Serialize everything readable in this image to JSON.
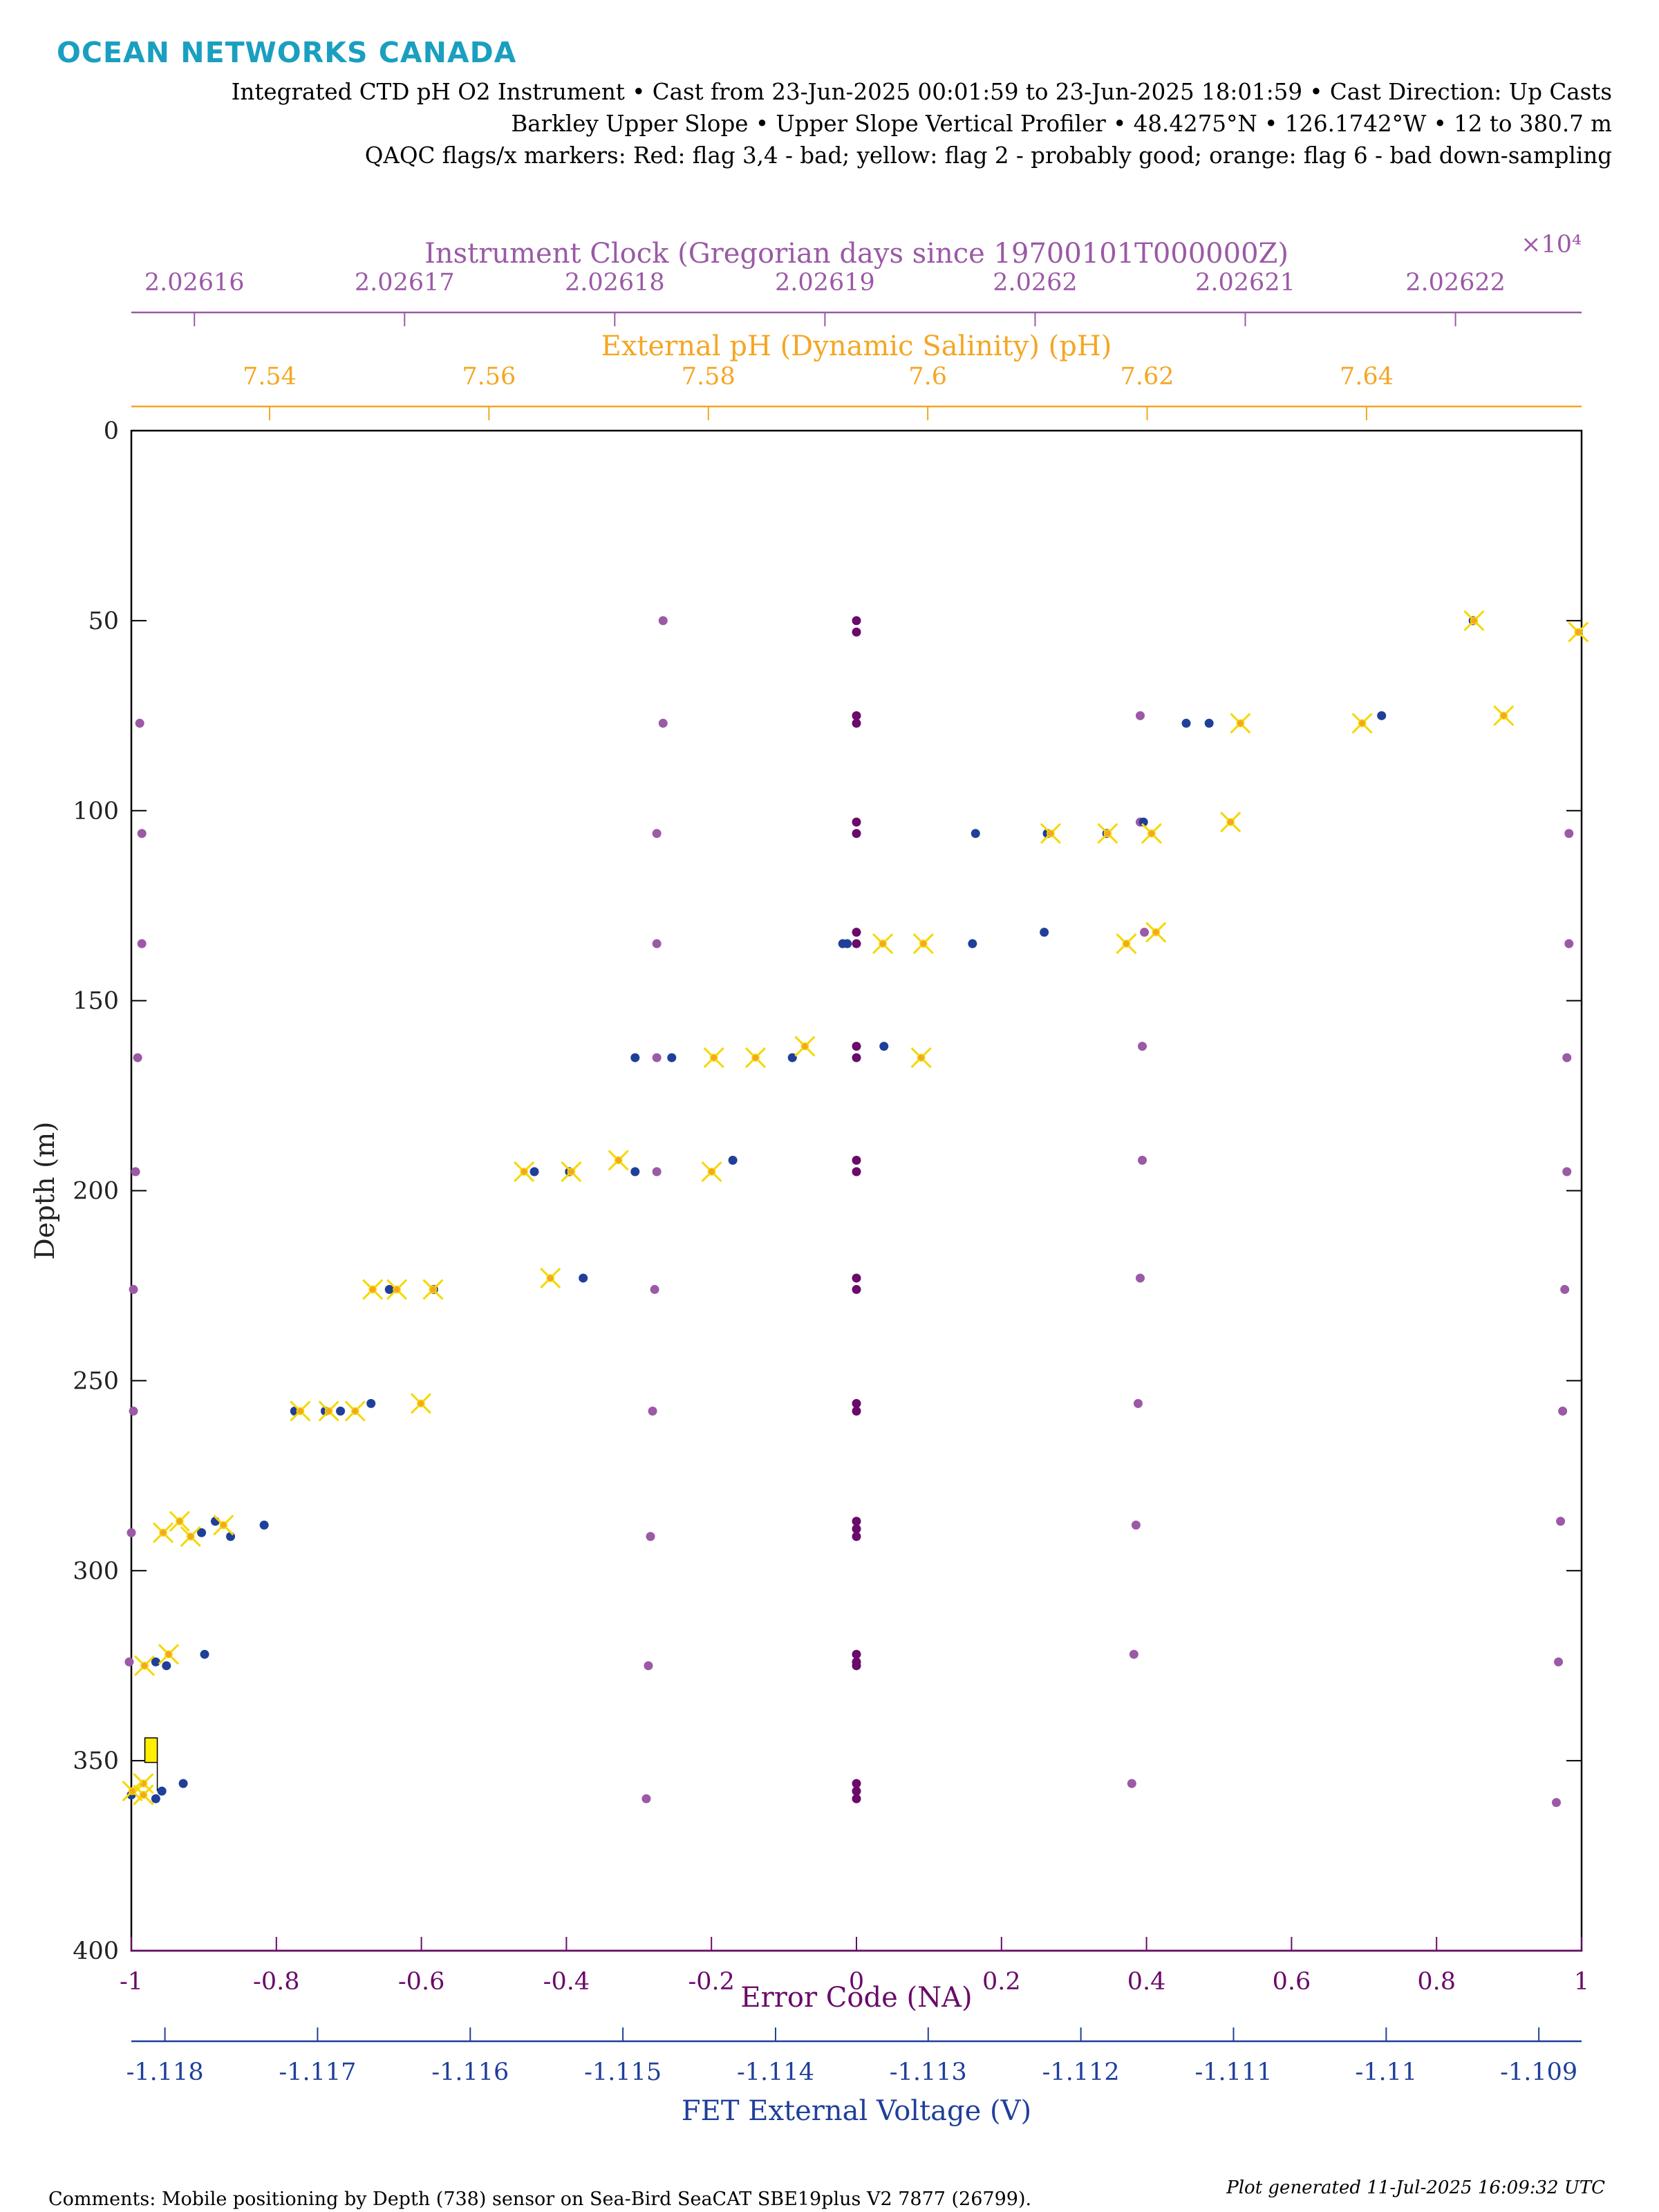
{
  "brand": {
    "logo_text": "OCEAN NETWORKS CANADA",
    "color": "#1a9fc0"
  },
  "header": {
    "line1": "Integrated CTD pH O2 Instrument • Cast from 23-Jun-2025 00:01:59 to 23-Jun-2025 18:01:59 • Cast Direction: Up Casts",
    "line2": "Barkley Upper Slope • Upper Slope Vertical Profiler • 48.4275°N • 126.1742°W • 12 to 380.7 m",
    "line3": "QAQC flags/x markers: Red: flag 3,4 - bad; yellow: flag 2 - probably good; orange: flag 6 - bad down-sampling"
  },
  "footer": {
    "comments": "Comments: Mobile positioning by Depth (738) sensor on Sea-Bird SeaCAT SBE19plus V2 7877 (26799).",
    "generated": "Plot generated 11-Jul-2025 16:09:32 UTC"
  },
  "chart_data": {
    "type": "scatter",
    "y_axis": {
      "label": "Depth (m)",
      "lim": [
        0,
        400
      ],
      "reversed": true,
      "ticks": [
        "0",
        "50",
        "100",
        "150",
        "200",
        "250",
        "300",
        "350",
        "400"
      ],
      "tick_values": [
        0,
        50,
        100,
        150,
        200,
        250,
        300,
        350,
        400
      ]
    },
    "axes": [
      {
        "id": "clock",
        "position": "top",
        "label": "Instrument Clock (Gregorian days since 19700101T000000Z)",
        "multiplier_label": "×10⁴",
        "color": "#9b59a6",
        "lim": [
          2.026157,
          2.026226
        ],
        "ticks": [
          "2.02616",
          "2.02617",
          "2.02618",
          "2.02619",
          "2.0262",
          "2.02621",
          "2.02622"
        ],
        "tick_values": [
          2.02616,
          2.02617,
          2.02618,
          2.02619,
          2.0262,
          2.02621,
          2.02622
        ]
      },
      {
        "id": "ph",
        "position": "top",
        "label": "External pH (Dynamic Salinity) (pH)",
        "color": "#f5a623",
        "lim": [
          7.5274,
          7.6596
        ],
        "ticks": [
          "7.54",
          "7.56",
          "7.58",
          "7.6",
          "7.62",
          "7.64"
        ],
        "tick_values": [
          7.54,
          7.56,
          7.58,
          7.6,
          7.62,
          7.64
        ]
      },
      {
        "id": "error",
        "position": "bottom",
        "label": "Error Code (NA)",
        "color": "#6a0a6a",
        "lim": [
          -1,
          1
        ],
        "ticks": [
          "-1",
          "-0.8",
          "-0.6",
          "-0.4",
          "-0.2",
          "0",
          "0.2",
          "0.4",
          "0.6",
          "0.8",
          "1"
        ],
        "tick_values": [
          -1,
          -0.8,
          -0.6,
          -0.4,
          -0.2,
          0,
          0.2,
          0.4,
          0.6,
          0.8,
          1
        ]
      },
      {
        "id": "fet",
        "position": "bottom",
        "label": "FET External Voltage (V)",
        "color": "#1f3f99",
        "lim": [
          -1.11822,
          -1.10872
        ],
        "ticks": [
          "-1.118",
          "-1.117",
          "-1.116",
          "-1.115",
          "-1.114",
          "-1.113",
          "-1.112",
          "-1.111",
          "-1.11",
          "-1.109"
        ],
        "tick_values": [
          -1.118,
          -1.117,
          -1.116,
          -1.115,
          -1.114,
          -1.113,
          -1.112,
          -1.111,
          -1.11,
          -1.109
        ]
      }
    ],
    "series": [
      {
        "axis": "clock",
        "color": "#9b59a6",
        "marker": "dot",
        "points": [
          [
            2.0261823,
            50
          ],
          [
            2.0261574,
            77
          ],
          [
            2.0261823,
            77
          ],
          [
            2.026205,
            75
          ],
          [
            2.0261575,
            106
          ],
          [
            2.026182,
            106
          ],
          [
            2.026205,
            103
          ],
          [
            2.0262254,
            106
          ],
          [
            2.0261575,
            135
          ],
          [
            2.026182,
            135
          ],
          [
            2.0262052,
            132
          ],
          [
            2.0262254,
            135
          ],
          [
            2.0261573,
            165
          ],
          [
            2.026182,
            165
          ],
          [
            2.0262051,
            162
          ],
          [
            2.0262253,
            165
          ],
          [
            2.0261572,
            195
          ],
          [
            2.026182,
            195
          ],
          [
            2.0262051,
            192
          ],
          [
            2.0262253,
            195
          ],
          [
            2.0261571,
            226
          ],
          [
            2.0261819,
            226
          ],
          [
            2.026205,
            223
          ],
          [
            2.0262252,
            226
          ],
          [
            2.0261571,
            258
          ],
          [
            2.0261818,
            258
          ],
          [
            2.0262049,
            256
          ],
          [
            2.0262251,
            258
          ],
          [
            2.026157,
            290
          ],
          [
            2.0261817,
            291
          ],
          [
            2.0262048,
            288
          ],
          [
            2.026225,
            287
          ],
          [
            2.0261569,
            324
          ],
          [
            2.0261816,
            325
          ],
          [
            2.0262047,
            322
          ],
          [
            2.0262249,
            324
          ],
          [
            2.0261815,
            360
          ],
          [
            2.0262046,
            356
          ],
          [
            2.0262248,
            361
          ]
        ]
      },
      {
        "axis": "error",
        "color": "#6a0a6a",
        "marker": "dot",
        "points": [
          [
            0,
            50
          ],
          [
            0,
            53
          ],
          [
            0,
            75
          ],
          [
            0,
            77
          ],
          [
            0,
            103
          ],
          [
            0,
            106
          ],
          [
            0,
            132
          ],
          [
            0,
            135
          ],
          [
            0,
            162
          ],
          [
            0,
            165
          ],
          [
            0,
            192
          ],
          [
            0,
            195
          ],
          [
            0,
            223
          ],
          [
            0,
            226
          ],
          [
            0,
            256
          ],
          [
            0,
            258
          ],
          [
            0,
            287
          ],
          [
            0,
            289
          ],
          [
            0,
            291
          ],
          [
            0,
            322
          ],
          [
            0,
            324
          ],
          [
            0,
            325
          ],
          [
            0,
            356
          ],
          [
            0,
            358
          ],
          [
            0,
            360
          ]
        ]
      },
      {
        "axis": "fet",
        "color": "#1f3f99",
        "marker": "dot",
        "points": [
          [
            -1.10943,
            50
          ],
          [
            -1.11003,
            75
          ],
          [
            -1.11131,
            77
          ],
          [
            -1.11116,
            77
          ],
          [
            -1.11159,
            103
          ],
          [
            -1.11183,
            106
          ],
          [
            -1.11222,
            106
          ],
          [
            -1.11269,
            106
          ],
          [
            -1.11356,
            135
          ],
          [
            -1.11353,
            135
          ],
          [
            -1.11271,
            135
          ],
          [
            -1.11224,
            132
          ],
          [
            -1.11492,
            165
          ],
          [
            -1.11468,
            165
          ],
          [
            -1.11389,
            165
          ],
          [
            -1.11329,
            162
          ],
          [
            -1.11558,
            195
          ],
          [
            -1.11535,
            195
          ],
          [
            -1.11492,
            195
          ],
          [
            -1.11428,
            192
          ],
          [
            -1.11653,
            226
          ],
          [
            -1.11624,
            226
          ],
          [
            -1.11526,
            223
          ],
          [
            -1.11715,
            258
          ],
          [
            -1.11695,
            258
          ],
          [
            -1.11685,
            258
          ],
          [
            -1.11665,
            256
          ],
          [
            -1.11776,
            290
          ],
          [
            -1.11767,
            287
          ],
          [
            -1.11757,
            291
          ],
          [
            -1.11735,
            288
          ],
          [
            -1.11806,
            324
          ],
          [
            -1.11799,
            325
          ],
          [
            -1.11774,
            322
          ],
          [
            -1.11822,
            359
          ],
          [
            -1.11806,
            360
          ],
          [
            -1.11802,
            358
          ],
          [
            -1.11788,
            356
          ]
        ]
      },
      {
        "axis": "ph",
        "color": "#f5d800",
        "marker": "x-flag",
        "points": [
          [
            7.6498,
            50
          ],
          [
            7.6593,
            53
          ],
          [
            7.6525,
            75
          ],
          [
            7.6396,
            77
          ],
          [
            7.6285,
            77
          ],
          [
            7.6276,
            103
          ],
          [
            7.6164,
            106
          ],
          [
            7.6112,
            106
          ],
          [
            7.6204,
            106
          ],
          [
            7.6208,
            132
          ],
          [
            7.6181,
            135
          ],
          [
            7.5996,
            135
          ],
          [
            7.5959,
            135
          ],
          [
            7.5888,
            162
          ],
          [
            7.5843,
            165
          ],
          [
            7.5994,
            165
          ],
          [
            7.5805,
            165
          ],
          [
            7.5718,
            192
          ],
          [
            7.5803,
            195
          ],
          [
            7.5675,
            195
          ],
          [
            7.5632,
            195
          ],
          [
            7.5656,
            223
          ],
          [
            7.5549,
            226
          ],
          [
            7.5516,
            226
          ],
          [
            7.5494,
            226
          ],
          [
            7.5538,
            256
          ],
          [
            7.5478,
            258
          ],
          [
            7.5454,
            258
          ],
          [
            7.5428,
            258
          ],
          [
            7.5358,
            288
          ],
          [
            7.5303,
            290
          ],
          [
            7.5318,
            287
          ],
          [
            7.5328,
            291
          ],
          [
            7.5308,
            322
          ],
          [
            7.5286,
            325
          ],
          [
            7.5285,
            356
          ],
          [
            7.5275,
            358
          ],
          [
            7.5285,
            359
          ]
        ]
      }
    ],
    "qaqc_flag_box": {
      "color": "#ffef00",
      "depth_top": 344,
      "depth_bottom": 349,
      "ph_value": 7.5292
    }
  }
}
